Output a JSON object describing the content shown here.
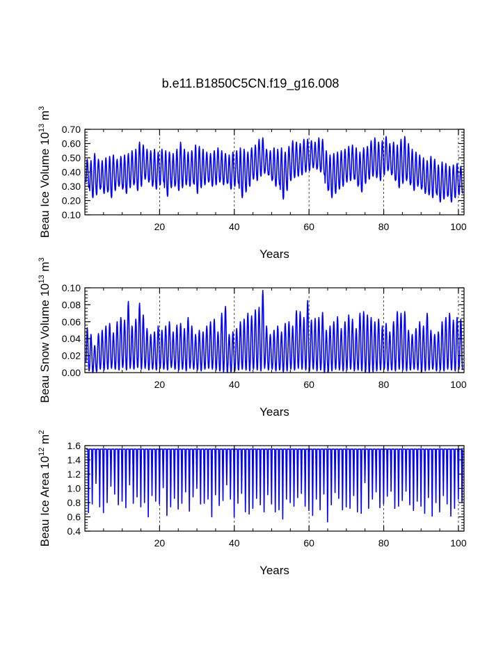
{
  "figure": {
    "title": "b.e11.B1850C5CN.f19_g16.008"
  },
  "chart_data": [
    {
      "type": "line",
      "title": "b.e11.B1850C5CN.f19_g16.008",
      "ylabel": {
        "main": "Beau Ice Volume 10",
        "sup": "13",
        "unit": "m",
        "unit_sup": "3"
      },
      "xlabel": "Years",
      "xlim": [
        0,
        101.5
      ],
      "ylim": [
        0.1,
        0.7
      ],
      "xticks": [
        20,
        40,
        60,
        80,
        100
      ],
      "xtick_labels": [
        "20",
        "40",
        "60",
        "80",
        "100"
      ],
      "yticks": [
        0.1,
        0.2,
        0.3,
        0.4,
        0.5,
        0.6,
        0.7
      ],
      "ytick_labels": [
        "0.10",
        "0.20",
        "0.30",
        "0.40",
        "0.50",
        "0.60",
        "0.70"
      ],
      "grid": "vertical dashed at 20, 40, 60, 80, 100",
      "series": [
        {
          "name": "Beau Ice Volume",
          "color": "#0000ff",
          "note": "monthly seasonal cycle; annual maximum and minimum per year",
          "annual_max": [
            0.49,
            0.48,
            0.53,
            0.49,
            0.48,
            0.5,
            0.51,
            0.52,
            0.49,
            0.51,
            0.52,
            0.53,
            0.55,
            0.56,
            0.61,
            0.59,
            0.56,
            0.55,
            0.56,
            0.54,
            0.56,
            0.55,
            0.54,
            0.53,
            0.56,
            0.61,
            0.56,
            0.54,
            0.55,
            0.59,
            0.58,
            0.56,
            0.54,
            0.53,
            0.55,
            0.57,
            0.55,
            0.53,
            0.52,
            0.54,
            0.55,
            0.57,
            0.56,
            0.54,
            0.57,
            0.59,
            0.63,
            0.64,
            0.56,
            0.55,
            0.57,
            0.56,
            0.57,
            0.54,
            0.58,
            0.62,
            0.61,
            0.6,
            0.63,
            0.63,
            0.62,
            0.61,
            0.64,
            0.63,
            0.55,
            0.52,
            0.53,
            0.54,
            0.55,
            0.56,
            0.58,
            0.59,
            0.57,
            0.54,
            0.57,
            0.58,
            0.62,
            0.64,
            0.61,
            0.62,
            0.65,
            0.6,
            0.61,
            0.59,
            0.63,
            0.65,
            0.6,
            0.56,
            0.54,
            0.52,
            0.5,
            0.48,
            0.51,
            0.49,
            0.45,
            0.47,
            0.46,
            0.44,
            0.45,
            0.46,
            0.44
          ],
          "annual_min": [
            0.29,
            0.22,
            0.24,
            0.28,
            0.25,
            0.26,
            0.22,
            0.27,
            0.3,
            0.28,
            0.25,
            0.29,
            0.31,
            0.27,
            0.3,
            0.35,
            0.33,
            0.3,
            0.28,
            0.31,
            0.33,
            0.23,
            0.29,
            0.3,
            0.27,
            0.29,
            0.31,
            0.3,
            0.32,
            0.25,
            0.29,
            0.31,
            0.33,
            0.3,
            0.31,
            0.33,
            0.31,
            0.32,
            0.28,
            0.3,
            0.32,
            0.22,
            0.26,
            0.3,
            0.35,
            0.34,
            0.37,
            0.39,
            0.38,
            0.34,
            0.3,
            0.31,
            0.21,
            0.27,
            0.34,
            0.36,
            0.37,
            0.38,
            0.4,
            0.41,
            0.43,
            0.42,
            0.4,
            0.38,
            0.27,
            0.22,
            0.25,
            0.28,
            0.3,
            0.33,
            0.34,
            0.35,
            0.3,
            0.26,
            0.32,
            0.35,
            0.37,
            0.36,
            0.34,
            0.38,
            0.41,
            0.38,
            0.34,
            0.29,
            0.32,
            0.34,
            0.31,
            0.27,
            0.3,
            0.28,
            0.25,
            0.24,
            0.22,
            0.25,
            0.19,
            0.21,
            0.23,
            0.19,
            0.22,
            0.24,
            0.25
          ]
        }
      ]
    },
    {
      "type": "line",
      "ylabel": {
        "main": "Beau Snow Volume 10",
        "sup": "13",
        "unit": "m",
        "unit_sup": "3"
      },
      "xlabel": "Years",
      "xlim": [
        0,
        101.5
      ],
      "ylim": [
        0.0,
        0.1
      ],
      "xticks": [
        20,
        40,
        60,
        80,
        100
      ],
      "xtick_labels": [
        "20",
        "40",
        "60",
        "80",
        "100"
      ],
      "yticks": [
        0.0,
        0.02,
        0.04,
        0.06,
        0.08,
        0.1
      ],
      "ytick_labels": [
        "0.00",
        "0.02",
        "0.04",
        "0.06",
        "0.08",
        "0.10"
      ],
      "grid": "vertical dashed at 20, 40, 60, 80, 100",
      "series": [
        {
          "name": "Beau Snow Volume",
          "color": "#0000ff",
          "note": "monthly seasonal cycle; annual maximum and minimum per year",
          "annual_max": [
            0.053,
            0.045,
            0.032,
            0.046,
            0.05,
            0.055,
            0.058,
            0.047,
            0.06,
            0.065,
            0.062,
            0.084,
            0.055,
            0.063,
            0.082,
            0.068,
            0.052,
            0.045,
            0.048,
            0.055,
            0.05,
            0.055,
            0.06,
            0.048,
            0.056,
            0.058,
            0.052,
            0.065,
            0.055,
            0.045,
            0.05,
            0.048,
            0.055,
            0.06,
            0.063,
            0.048,
            0.07,
            0.078,
            0.045,
            0.048,
            0.052,
            0.06,
            0.063,
            0.07,
            0.067,
            0.074,
            0.077,
            0.097,
            0.055,
            0.045,
            0.05,
            0.055,
            0.048,
            0.058,
            0.06,
            0.055,
            0.073,
            0.072,
            0.065,
            0.085,
            0.062,
            0.064,
            0.065,
            0.071,
            0.05,
            0.055,
            0.06,
            0.066,
            0.052,
            0.06,
            0.068,
            0.063,
            0.052,
            0.07,
            0.072,
            0.068,
            0.065,
            0.06,
            0.063,
            0.055,
            0.058,
            0.048,
            0.06,
            0.072,
            0.07,
            0.072,
            0.05,
            0.045,
            0.052,
            0.06,
            0.055,
            0.07,
            0.05,
            0.045,
            0.048,
            0.06,
            0.065,
            0.07,
            0.062,
            0.065,
            0.063
          ],
          "annual_min": [
            0.002,
            0.0,
            0.001,
            0.004,
            0.003,
            0.004,
            0.005,
            0.004,
            0.003,
            0.006,
            0.003,
            0.005,
            0.004,
            0.006,
            0.004,
            0.005,
            0.003,
            0.004,
            0.003,
            0.005,
            0.004,
            0.003,
            0.006,
            0.004,
            0.003,
            0.004,
            0.002,
            0.005,
            0.004,
            0.003,
            0.002,
            0.004,
            0.005,
            0.004,
            0.003,
            0.002,
            0.001,
            0.0,
            0.001,
            0.002,
            0.003,
            0.004,
            0.003,
            0.002,
            0.004,
            0.003,
            0.002,
            0.005,
            0.003,
            0.004,
            0.002,
            0.003,
            0.001,
            0.002,
            0.004,
            0.003,
            0.005,
            0.004,
            0.003,
            0.002,
            0.004,
            0.002,
            0.003,
            0.0,
            0.001,
            0.002,
            0.004,
            0.003,
            0.002,
            0.003,
            0.004,
            0.002,
            0.003,
            0.002,
            0.001,
            0.0,
            0.001,
            0.002,
            0.003,
            0.004,
            0.002,
            0.003,
            0.002,
            0.004,
            0.003,
            0.002,
            0.003,
            0.004,
            0.003,
            0.001,
            0.002,
            0.003,
            0.004,
            0.002,
            0.003,
            0.002,
            0.004,
            0.003,
            0.002,
            0.004,
            0.003
          ]
        }
      ]
    },
    {
      "type": "line",
      "ylabel": {
        "main": "Beau Ice Area 10",
        "sup": "12",
        "unit": "m",
        "unit_sup": "2"
      },
      "xlabel": "Years",
      "xlim": [
        0,
        101.5
      ],
      "ylim": [
        0.4,
        1.6
      ],
      "xticks": [
        20,
        40,
        60,
        80,
        100
      ],
      "xtick_labels": [
        "20",
        "40",
        "60",
        "80",
        "100"
      ],
      "yticks": [
        0.4,
        0.6,
        0.8,
        1.0,
        1.2,
        1.4,
        1.6
      ],
      "ytick_labels": [
        "0.4",
        "0.6",
        "0.8",
        "1.0",
        "1.2",
        "1.4",
        "1.6"
      ],
      "grid": "vertical dashed at 20, 40, 60, 80, 100",
      "series": [
        {
          "name": "Beau Ice Area",
          "color": "#0000ff",
          "note": "monthly seasonal cycle; saturates at 1.55 each winter; annual minimum per year",
          "annual_max_constant": 1.55,
          "annual_min": [
            0.66,
            0.78,
            1.07,
            0.74,
            0.66,
            0.8,
            1.03,
            0.92,
            0.77,
            0.82,
            0.73,
            1.05,
            0.79,
            0.88,
            0.74,
            0.8,
            0.6,
            0.9,
            0.82,
            0.78,
            1.01,
            0.62,
            0.74,
            0.86,
            0.71,
            0.79,
            0.95,
            0.68,
            0.88,
            1.0,
            0.78,
            0.79,
            0.85,
            0.6,
            0.91,
            0.76,
            0.83,
            1.05,
            0.85,
            0.6,
            0.79,
            0.93,
            0.67,
            0.64,
            0.72,
            0.86,
            0.77,
            0.67,
            0.91,
            0.78,
            0.67,
            0.7,
            0.57,
            0.85,
            0.8,
            0.75,
            0.87,
            0.93,
            0.75,
            0.69,
            0.62,
            0.85,
            0.7,
            0.92,
            0.53,
            0.77,
            0.94,
            0.86,
            0.7,
            0.74,
            0.72,
            0.9,
            0.67,
            0.65,
            1.08,
            0.72,
            0.85,
            0.95,
            0.73,
            0.78,
            0.89,
            0.96,
            0.72,
            0.75,
            0.83,
            0.96,
            0.77,
            0.69,
            0.82,
            0.75,
            0.65,
            0.87,
            0.61,
            0.8,
            0.67,
            0.9,
            0.78,
            0.61,
            0.72,
            0.85,
            0.8
          ]
        }
      ]
    }
  ]
}
